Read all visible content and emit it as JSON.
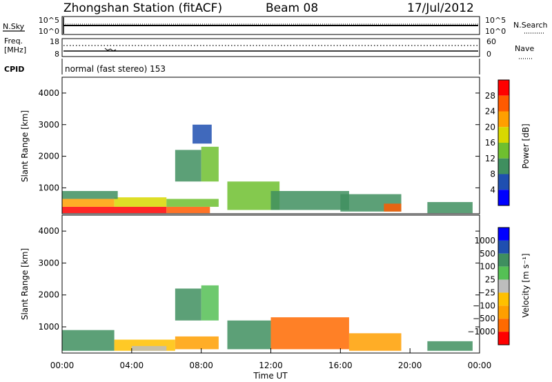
{
  "header": {
    "station": "Zhongshan Station (fitACF)",
    "beam": "Beam 08",
    "date": "17/Jul/2012"
  },
  "summary": {
    "nsky_label": "N.Sky",
    "nsearch_label": "N.Search",
    "noise_ticks": [
      "10^5",
      "10^0"
    ],
    "freq_label_1": "Freq.",
    "freq_label_2": "[MHz]",
    "freq_ticks": [
      "18",
      "8"
    ],
    "nave_label": "Nave",
    "nave_ticks": [
      "60",
      "0"
    ],
    "cpid_label": "CPID",
    "cpid_text": "normal (fast stereo) 153"
  },
  "colors": {
    "power": [
      "#0000ff",
      "#1f4fb0",
      "#3f8f5f",
      "#6fbf2f",
      "#d8d800",
      "#ff9f00",
      "#ff5a00",
      "#ff0000"
    ],
    "velocity": [
      "#ff0000",
      "#ff6a00",
      "#ff9f00",
      "#ffc000",
      "#bdbdbd",
      "#55c055",
      "#3f8f5f",
      "#1f4fb0",
      "#0000ff"
    ]
  },
  "chart_data": [
    {
      "type": "heatmap",
      "name": "power",
      "ylabel": "Slant Range [km]",
      "xlabel": "",
      "colorbar_label": "Power [dB]",
      "colorbar_ticks": [
        "28",
        "24",
        "20",
        "16",
        "12",
        "8",
        "4"
      ],
      "y_ticks": [
        "1000",
        "2000",
        "3000",
        "4000"
      ],
      "x_ticks": [],
      "xlim_hours": [
        0,
        24
      ],
      "ylim_km": [
        180,
        4500
      ],
      "regions": [
        {
          "t0": 0.0,
          "t1": 6.0,
          "r0": 200,
          "r1": 400,
          "level": 7
        },
        {
          "t0": 0.0,
          "t1": 3.0,
          "r0": 400,
          "r1": 650,
          "level": 5
        },
        {
          "t0": 3.0,
          "t1": 6.0,
          "r0": 400,
          "r1": 700,
          "level": 4
        },
        {
          "t0": 0.0,
          "t1": 3.2,
          "r0": 650,
          "r1": 900,
          "level": 2
        },
        {
          "t0": 6.0,
          "t1": 8.5,
          "r0": 200,
          "r1": 400,
          "level": 6
        },
        {
          "t0": 6.0,
          "t1": 9.0,
          "r0": 400,
          "r1": 650,
          "level": 3
        },
        {
          "t0": 6.5,
          "t1": 8.0,
          "r0": 1200,
          "r1": 2200,
          "level": 2
        },
        {
          "t0": 8.0,
          "t1": 9.0,
          "r0": 1200,
          "r1": 2300,
          "level": 3
        },
        {
          "t0": 7.5,
          "t1": 8.6,
          "r0": 2400,
          "r1": 3000,
          "level": 1
        },
        {
          "t0": 9.5,
          "t1": 12.5,
          "r0": 300,
          "r1": 1200,
          "level": 3
        },
        {
          "t0": 12.0,
          "t1": 16.5,
          "r0": 300,
          "r1": 900,
          "level": 2
        },
        {
          "t0": 16.0,
          "t1": 19.5,
          "r0": 250,
          "r1": 800,
          "level": 2
        },
        {
          "t0": 18.5,
          "t1": 19.5,
          "r0": 250,
          "r1": 500,
          "level": 6
        },
        {
          "t0": 21.0,
          "t1": 23.6,
          "r0": 200,
          "r1": 550,
          "level": 2
        }
      ]
    },
    {
      "type": "heatmap",
      "name": "velocity",
      "ylabel": "Slant Range [km]",
      "xlabel": "Time UT",
      "colorbar_label": "Velocity [m s⁻¹]",
      "colorbar_ticks": [
        "1000",
        "500",
        "100",
        "25",
        "−25",
        "−100",
        "−500",
        "−1000"
      ],
      "y_ticks": [
        "1000",
        "2000",
        "3000",
        "4000"
      ],
      "x_ticks": [
        "00:00",
        "04:00",
        "08:00",
        "12:00",
        "16:00",
        "20:00",
        "00:00"
      ],
      "xlim_hours": [
        0,
        24
      ],
      "ylim_km": [
        180,
        4500
      ],
      "regions": [
        {
          "t0": 0.0,
          "t1": 3.0,
          "r0": 250,
          "r1": 900,
          "level": 6
        },
        {
          "t0": 3.0,
          "t1": 6.5,
          "r0": 250,
          "r1": 600,
          "level": 3
        },
        {
          "t0": 4.0,
          "t1": 6.0,
          "r0": 250,
          "r1": 400,
          "level": 4
        },
        {
          "t0": 6.5,
          "t1": 9.0,
          "r0": 300,
          "r1": 700,
          "level": 2
        },
        {
          "t0": 6.5,
          "t1": 8.0,
          "r0": 1200,
          "r1": 2200,
          "level": 6
        },
        {
          "t0": 8.0,
          "t1": 9.0,
          "r0": 1200,
          "r1": 2300,
          "level": 5
        },
        {
          "t0": 9.5,
          "t1": 12.0,
          "r0": 300,
          "r1": 1200,
          "level": 6
        },
        {
          "t0": 12.0,
          "t1": 16.5,
          "r0": 300,
          "r1": 1300,
          "level": 1
        },
        {
          "t0": 16.5,
          "t1": 19.5,
          "r0": 250,
          "r1": 800,
          "level": 2
        },
        {
          "t0": 21.0,
          "t1": 23.6,
          "r0": 250,
          "r1": 550,
          "level": 6
        }
      ]
    }
  ]
}
